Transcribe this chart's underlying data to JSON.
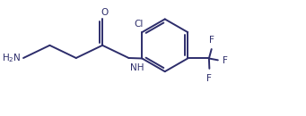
{
  "bg_color": "#ffffff",
  "line_color": "#2d2d6b",
  "line_width": 1.4,
  "font_size": 7.5,
  "figsize": [
    3.41,
    1.3
  ],
  "dpi": 100,
  "xlim": [
    0.0,
    7.2
  ],
  "ylim": [
    0.5,
    3.2
  ]
}
